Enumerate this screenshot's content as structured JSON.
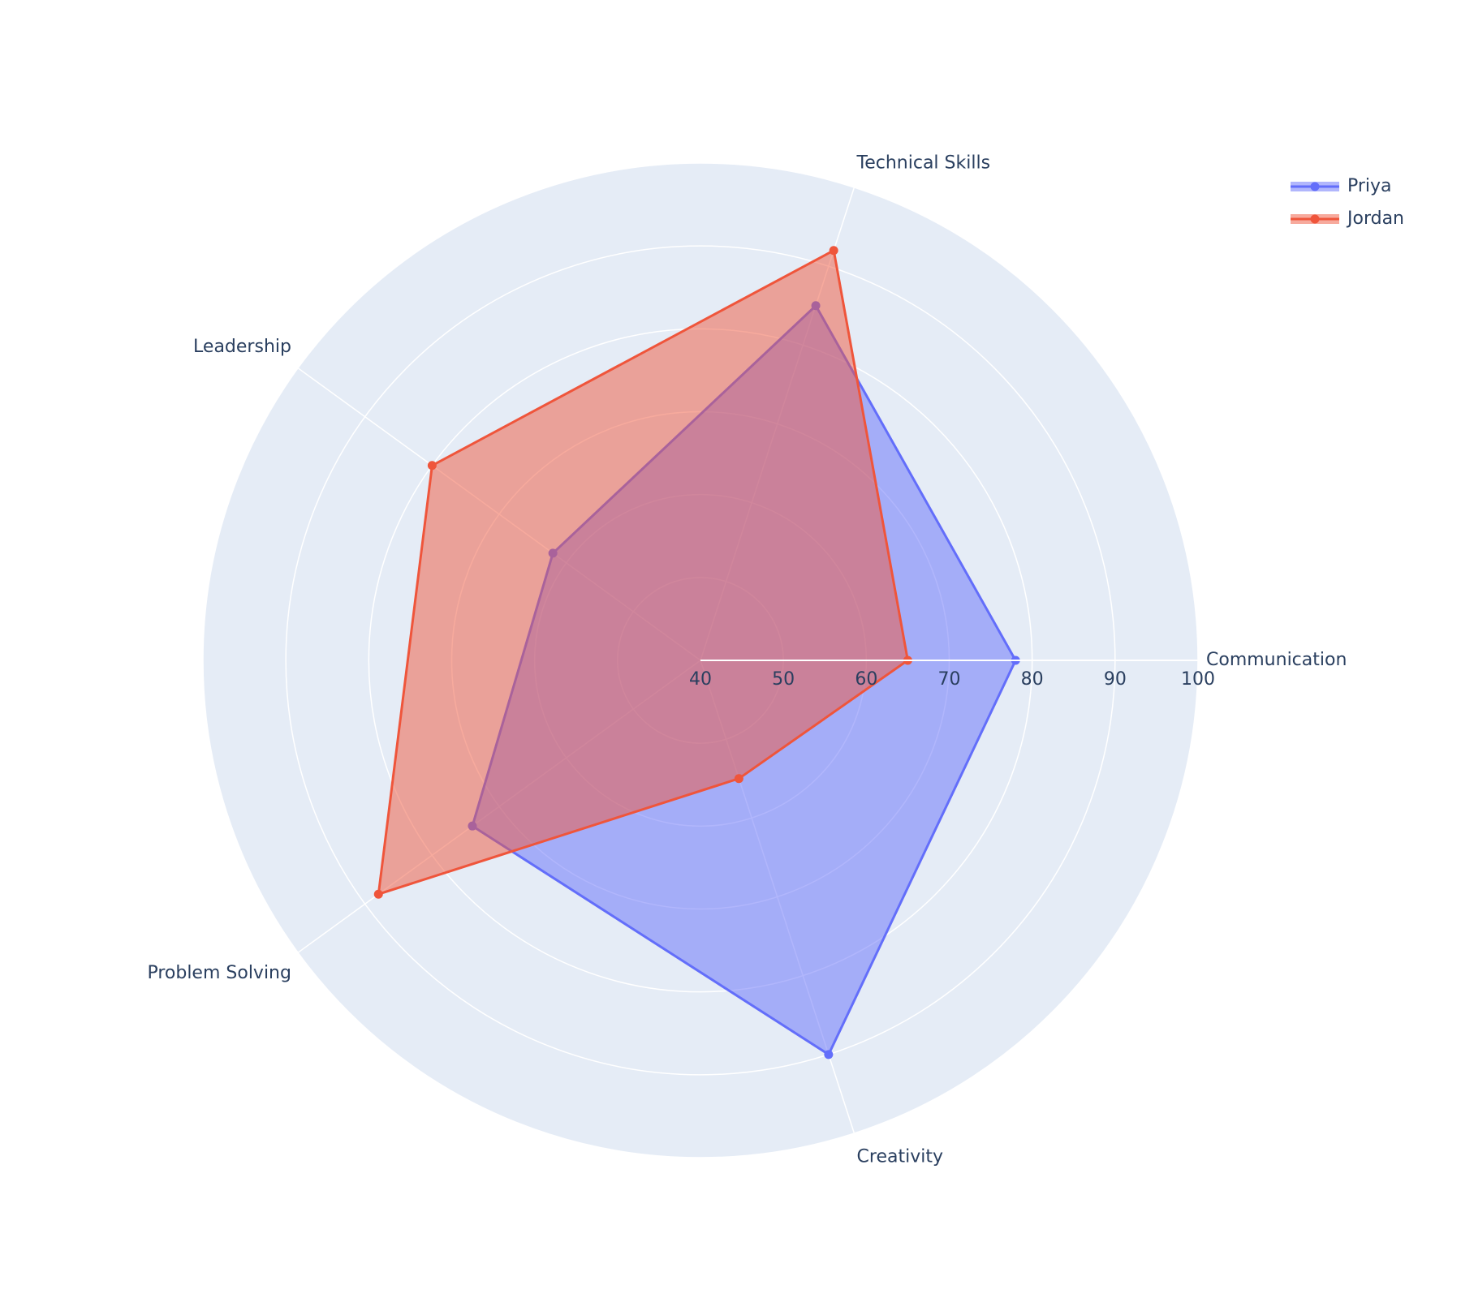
{
  "chart_data": {
    "type": "radar",
    "categories": [
      "Communication",
      "Technical Skills",
      "Leadership",
      "Problem Solving",
      "Creativity"
    ],
    "series": [
      {
        "name": "Priya",
        "color": "#636efa",
        "values": [
          78,
          85,
          62,
          74,
          90
        ]
      },
      {
        "name": "Jordan",
        "color": "#ef553b",
        "values": [
          65,
          92,
          80,
          88,
          55
        ]
      }
    ],
    "rlim": [
      40,
      100
    ],
    "rticks": [
      40,
      50,
      60,
      70,
      80,
      90,
      100
    ],
    "fill": true,
    "grid": true,
    "legend": "top-right"
  }
}
